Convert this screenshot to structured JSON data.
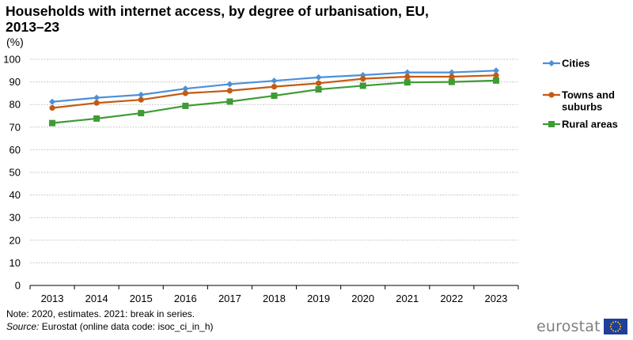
{
  "header": {
    "title_line1": "Households with internet access, by degree of urbanisation, EU,",
    "title_line2": "2013–23",
    "unit": "(%)"
  },
  "chart_data": {
    "type": "line",
    "title": "Households with internet access, by degree of urbanisation, EU, 2013–23",
    "xlabel": "",
    "ylabel": "(%)",
    "ylim": [
      0,
      100
    ],
    "yticks": [
      0,
      10,
      20,
      30,
      40,
      50,
      60,
      70,
      80,
      90,
      100
    ],
    "grid": true,
    "legend_position": "right",
    "categories": [
      "2013",
      "2014",
      "2015",
      "2016",
      "2017",
      "2018",
      "2019",
      "2020",
      "2021",
      "2022",
      "2023"
    ],
    "series": [
      {
        "name": "Cities",
        "color": "#4a90d9",
        "marker": "diamond",
        "values": [
          81.2,
          83.0,
          84.3,
          87.0,
          89.0,
          90.5,
          92.0,
          93.0,
          94.2,
          94.2,
          95.0
        ]
      },
      {
        "name": "Towns and suburbs",
        "color": "#c55a11",
        "marker": "circle",
        "values": [
          78.5,
          80.7,
          82.1,
          85.0,
          86.1,
          87.9,
          89.4,
          91.4,
          92.3,
          92.3,
          92.9
        ]
      },
      {
        "name": "Rural areas",
        "color": "#3e9b35",
        "marker": "square",
        "values": [
          71.8,
          73.8,
          76.2,
          79.4,
          81.3,
          83.9,
          86.7,
          88.3,
          89.8,
          90.0,
          90.6
        ]
      }
    ]
  },
  "footer": {
    "note": "Note: 2020, estimates. 2021: break in series.",
    "source_label": "Source:",
    "source_text": " Eurostat (online data code: isoc_ci_in_h)",
    "logo_text": "eurostat"
  },
  "colors": {
    "eu_blue": "#1f3f99",
    "eu_star": "#ffcc00",
    "grid": "#c8c8c8"
  }
}
